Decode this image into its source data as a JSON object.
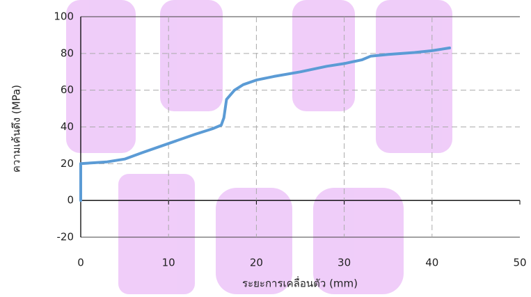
{
  "chart_data": {
    "type": "line",
    "x_label": "ระยะการเคลื่อนตัว (mm)",
    "y_label": "ความเค้นดึง (MPa)",
    "x": [
      0,
      0,
      3,
      5,
      7,
      10,
      13,
      15,
      16,
      16.3,
      16.6,
      17.5,
      18.5,
      20,
      22,
      25,
      28,
      30,
      31,
      32,
      33,
      35,
      38,
      40,
      42
    ],
    "values": [
      0,
      20,
      21,
      22.5,
      26,
      31,
      36,
      39,
      41,
      45,
      55,
      60,
      63,
      65.5,
      67.5,
      70,
      73,
      74.5,
      75.5,
      76.5,
      78.5,
      79.5,
      80.5,
      81.5,
      83
    ],
    "color": "#5b9bd5",
    "xlim": [
      0,
      50
    ],
    "xticks": [
      0,
      10,
      20,
      30,
      40,
      50
    ],
    "ylim": [
      -20,
      100
    ],
    "yticks": [
      -20,
      0,
      20,
      40,
      60,
      80,
      100
    ],
    "grid": true
  }
}
